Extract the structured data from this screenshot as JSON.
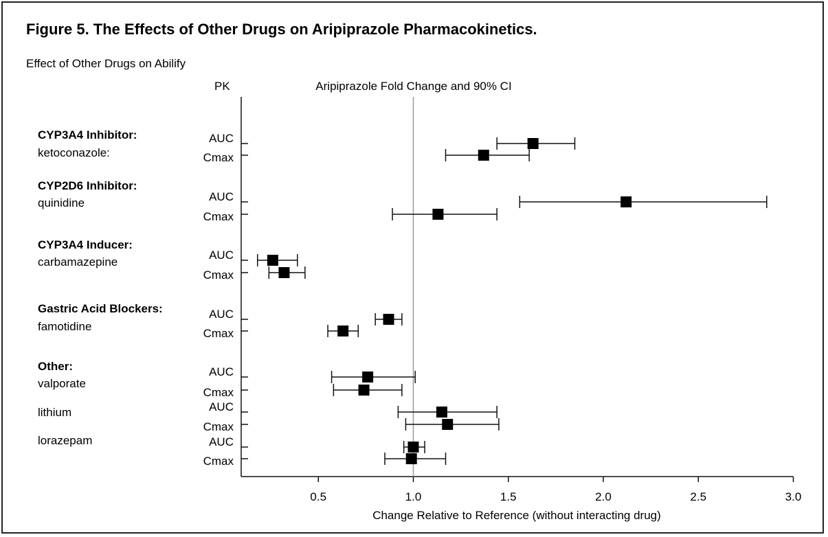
{
  "chart_data": {
    "type": "forest",
    "title": "Figure 5. The Effects of Other Drugs on Aripiprazole Pharmacokinetics.",
    "subtitle": "Effect of Other Drugs on Abilify",
    "column_header_left": "PK",
    "column_header_center": "Aripiprazole Fold Change and 90% CI",
    "xlabel": "Change Relative to Reference (without interacting drug)",
    "xlim": [
      0.1,
      3.0
    ],
    "x_ticks": [
      "0.5",
      "1.0",
      "1.5",
      "2.0",
      "2.5",
      "3.0"
    ],
    "x_tick_values": [
      0.5,
      1.0,
      1.5,
      2.0,
      2.5,
      3.0
    ],
    "reference_line": 1.0,
    "groups": [
      {
        "label": "CYP3A4 Inhibitor:",
        "drugs": [
          {
            "name": "ketoconazole:",
            "rows": [
              {
                "pk": "AUC",
                "estimate": 1.63,
                "lo": 1.44,
                "hi": 1.85
              },
              {
                "pk": "Cmax",
                "estimate": 1.37,
                "lo": 1.17,
                "hi": 1.61
              }
            ]
          }
        ]
      },
      {
        "label": "CYP2D6 Inhibitor:",
        "drugs": [
          {
            "name": "quinidine",
            "rows": [
              {
                "pk": "AUC",
                "estimate": 2.12,
                "lo": 1.56,
                "hi": 2.86
              },
              {
                "pk": "Cmax",
                "estimate": 1.13,
                "lo": 0.89,
                "hi": 1.44
              }
            ]
          }
        ]
      },
      {
        "label": "CYP3A4 Inducer:",
        "drugs": [
          {
            "name": "carbamazepine",
            "rows": [
              {
                "pk": "AUC",
                "estimate": 0.26,
                "lo": 0.18,
                "hi": 0.39
              },
              {
                "pk": "Cmax",
                "estimate": 0.32,
                "lo": 0.24,
                "hi": 0.43
              }
            ]
          }
        ]
      },
      {
        "label": "Gastric Acid Blockers:",
        "drugs": [
          {
            "name": "famotidine",
            "rows": [
              {
                "pk": "AUC",
                "estimate": 0.87,
                "lo": 0.8,
                "hi": 0.94
              },
              {
                "pk": "Cmax",
                "estimate": 0.63,
                "lo": 0.55,
                "hi": 0.71
              }
            ]
          }
        ]
      },
      {
        "label": "Other:",
        "drugs": [
          {
            "name": "valporate",
            "rows": [
              {
                "pk": "AUC",
                "estimate": 0.76,
                "lo": 0.57,
                "hi": 1.01
              },
              {
                "pk": "Cmax",
                "estimate": 0.74,
                "lo": 0.58,
                "hi": 0.94
              }
            ]
          },
          {
            "name": "lithium",
            "rows": [
              {
                "pk": "AUC",
                "estimate": 1.15,
                "lo": 0.92,
                "hi": 1.44
              },
              {
                "pk": "Cmax",
                "estimate": 1.18,
                "lo": 0.96,
                "hi": 1.45
              }
            ]
          },
          {
            "name": "lorazepam",
            "rows": [
              {
                "pk": "AUC",
                "estimate": 1.0,
                "lo": 0.95,
                "hi": 1.06
              },
              {
                "pk": "Cmax",
                "estimate": 0.99,
                "lo": 0.85,
                "hi": 1.17
              }
            ]
          }
        ]
      }
    ]
  }
}
